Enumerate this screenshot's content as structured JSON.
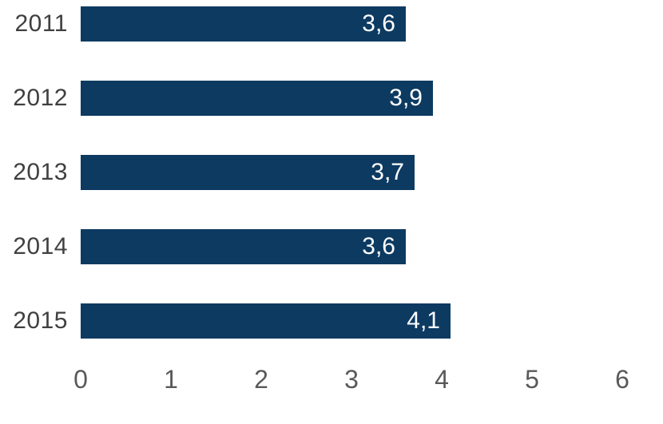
{
  "chart_data": {
    "type": "bar",
    "orientation": "horizontal",
    "title": "",
    "xlabel": "",
    "ylabel": "",
    "categories": [
      "2011",
      "2012",
      "2013",
      "2014",
      "2015"
    ],
    "values": [
      3.6,
      3.9,
      3.7,
      3.6,
      4.1
    ],
    "value_labels": [
      "3,6",
      "3,9",
      "3,7",
      "3,6",
      "4,1"
    ],
    "xlim": [
      0,
      6
    ],
    "x_ticks": [
      "0",
      "1",
      "2",
      "3",
      "4",
      "5",
      "6"
    ],
    "grid": false,
    "legend": false,
    "value_label_position": "inside-end",
    "colors": {
      "bar": "#0d3a61",
      "value_label": "#ffffff",
      "category_label": "#404040",
      "tick_label": "#595959",
      "background": "#ffffff"
    }
  }
}
